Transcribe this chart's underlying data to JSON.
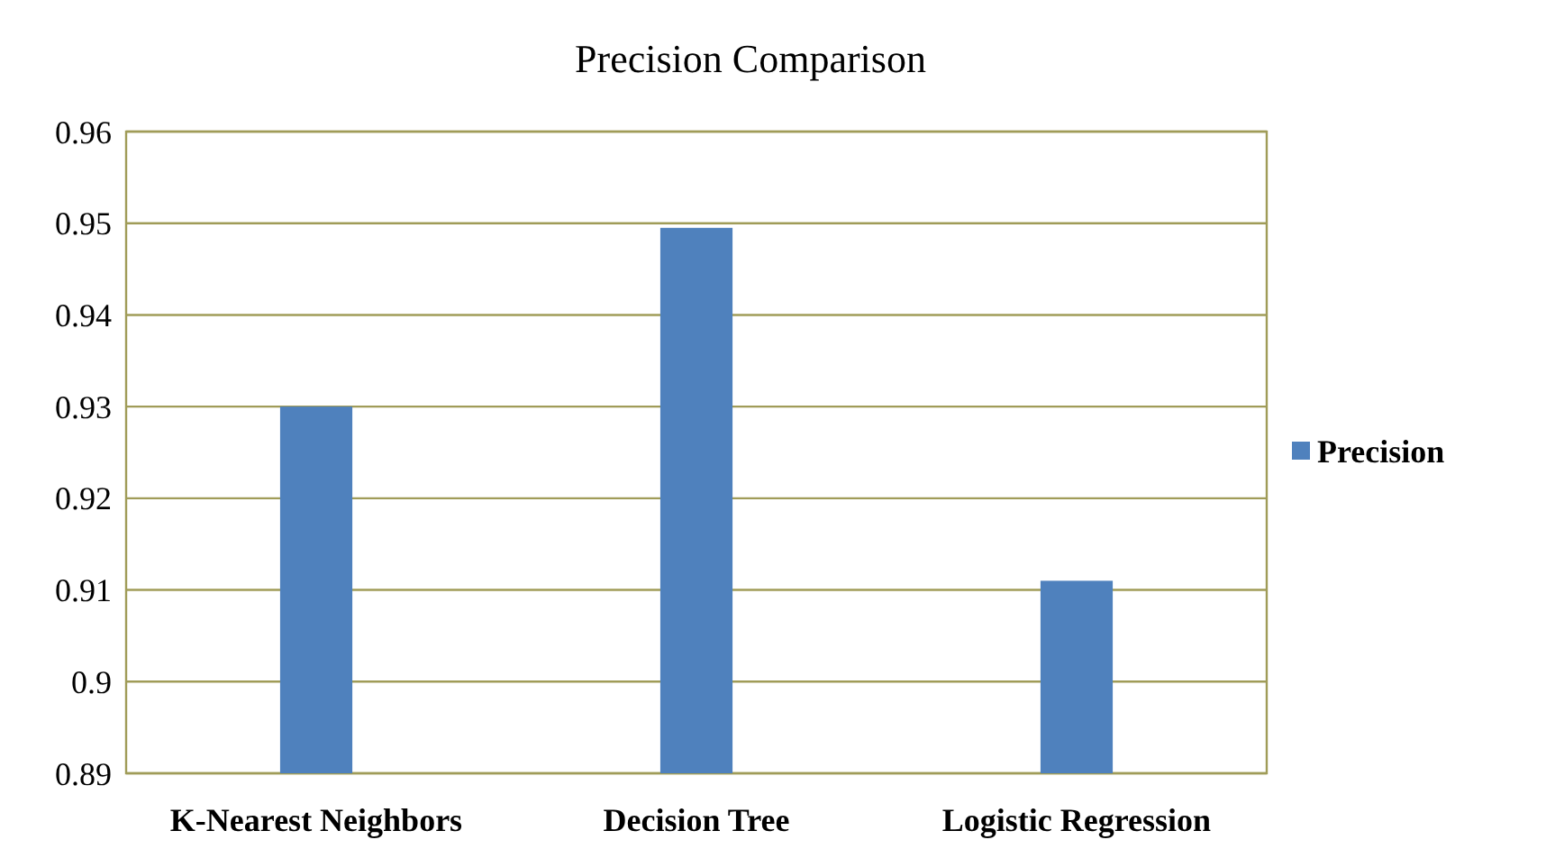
{
  "chart_data": {
    "type": "bar",
    "title": "Precision Comparison",
    "categories": [
      "K-Nearest Neighbors",
      "Decision Tree",
      "Logistic Regression"
    ],
    "series": [
      {
        "name": "Precision",
        "color": "#4f81bd",
        "values": [
          0.93,
          0.9495,
          0.911
        ]
      }
    ],
    "ylim": [
      0.89,
      0.96
    ],
    "yticks": [
      0.89,
      0.9,
      0.91,
      0.92,
      0.93,
      0.94,
      0.95,
      0.96
    ],
    "grid": "y",
    "legend": "right"
  }
}
